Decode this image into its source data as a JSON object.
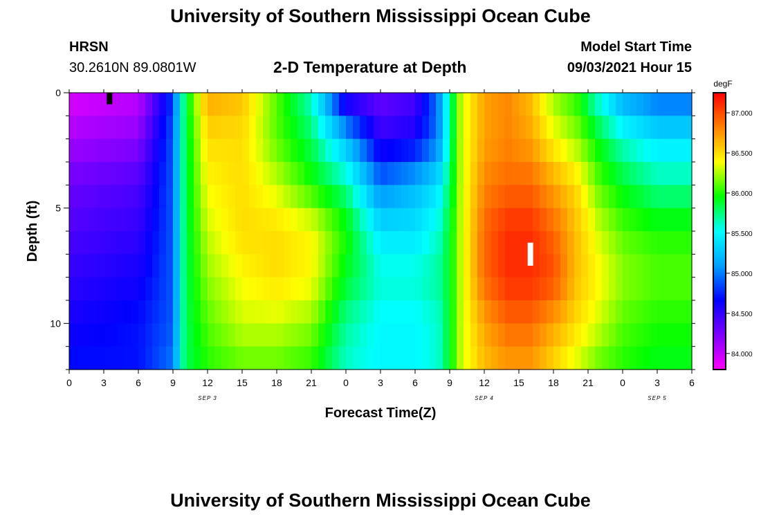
{
  "page": {
    "title_top": "University of Southern Mississippi Ocean Cube",
    "title_bottom": "University of Southern Mississippi Ocean Cube",
    "station_name": "HRSN",
    "station_coords": "30.2610N  89.0801W",
    "plot_title": "2-D Temperature at Depth",
    "model_label": "Model Start Time",
    "model_time": "09/03/2021 Hour 15"
  },
  "colors": {
    "scale": [
      "#ff00ff",
      "#7f00ff",
      "#0000ff",
      "#00a0ff",
      "#00ffff",
      "#00ff00",
      "#ffff00",
      "#ff8000",
      "#ff0000"
    ],
    "frame": "#000000"
  },
  "chart_data": {
    "type": "heatmap",
    "xlabel": "Forecast Time(Z)",
    "ylabel": "Depth (ft)",
    "colorbar_label": "degF",
    "colorbar_ticks": [
      "84.000",
      "84.500",
      "85.000",
      "85.500",
      "86.000",
      "86.500",
      "87.000"
    ],
    "colorbar_range": [
      83.8,
      87.25
    ],
    "x_hours": [
      0,
      54
    ],
    "x_tick_labels": [
      "0",
      "3",
      "6",
      "9",
      "12",
      "15",
      "18",
      "21",
      "0",
      "3",
      "6",
      "9",
      "12",
      "15",
      "18",
      "21",
      "0",
      "3",
      "6"
    ],
    "day_labels": [
      {
        "text": "SEP 3",
        "hour": 12
      },
      {
        "text": "SEP 4",
        "hour": 36
      },
      {
        "text": "SEP 5",
        "hour": 51
      }
    ],
    "y_range": [
      0,
      12
    ],
    "y_ticks": [
      0,
      5,
      10
    ],
    "time_hours": [
      0,
      6,
      9,
      10,
      12,
      15,
      18,
      21,
      24,
      27,
      30,
      32,
      33,
      34,
      36,
      38,
      40,
      42,
      44,
      46,
      48,
      51,
      54
    ],
    "depths": [
      0,
      2,
      4,
      6,
      8,
      10,
      12
    ],
    "values": [
      [
        83.9,
        84.0,
        84.8,
        85.8,
        86.7,
        86.6,
        86.1,
        85.6,
        84.4,
        84.3,
        84.4,
        85.0,
        85.7,
        86.3,
        86.7,
        86.8,
        86.6,
        86.2,
        86.0,
        85.5,
        85.1,
        84.9,
        84.9
      ],
      [
        84.1,
        84.2,
        84.9,
        85.8,
        86.5,
        86.5,
        86.1,
        85.8,
        85.2,
        84.5,
        84.6,
        85.0,
        85.7,
        86.3,
        86.7,
        86.8,
        86.7,
        86.4,
        86.2,
        85.9,
        85.6,
        85.4,
        85.4
      ],
      [
        84.3,
        84.4,
        84.9,
        85.8,
        86.4,
        86.5,
        86.3,
        86.0,
        85.7,
        85.0,
        85.2,
        85.4,
        85.8,
        86.3,
        86.8,
        86.9,
        86.9,
        86.7,
        86.5,
        86.1,
        85.9,
        85.7,
        85.7
      ],
      [
        84.4,
        84.5,
        84.9,
        85.8,
        86.3,
        86.5,
        86.5,
        86.4,
        86.0,
        85.4,
        85.4,
        85.6,
        85.9,
        86.3,
        86.9,
        87.1,
        87.1,
        86.9,
        86.6,
        86.3,
        86.1,
        86.0,
        86.0
      ],
      [
        84.5,
        84.6,
        84.9,
        85.8,
        86.2,
        86.4,
        86.5,
        86.4,
        85.9,
        85.6,
        85.6,
        85.7,
        85.9,
        86.3,
        86.9,
        87.1,
        87.1,
        87.0,
        86.6,
        86.4,
        86.2,
        86.1,
        86.1
      ],
      [
        84.6,
        84.7,
        84.9,
        85.8,
        86.1,
        86.3,
        86.3,
        86.2,
        85.7,
        85.5,
        85.5,
        85.6,
        85.9,
        86.3,
        86.7,
        86.9,
        86.9,
        86.7,
        86.5,
        86.3,
        86.1,
        86.0,
        86.0
      ],
      [
        84.7,
        84.7,
        85.0,
        85.8,
        86.0,
        86.1,
        86.1,
        86.0,
        85.6,
        85.5,
        85.5,
        85.6,
        85.9,
        86.3,
        86.6,
        86.7,
        86.7,
        86.5,
        86.3,
        86.1,
        86.0,
        85.9,
        85.9
      ]
    ],
    "markers": [
      {
        "hour": 3.5,
        "depth_top": 0.0,
        "depth_bottom": 0.5,
        "color": "#000000"
      },
      {
        "hour": 40.0,
        "depth_top": 6.5,
        "depth_bottom": 7.5,
        "color": "#ffffff"
      }
    ]
  }
}
